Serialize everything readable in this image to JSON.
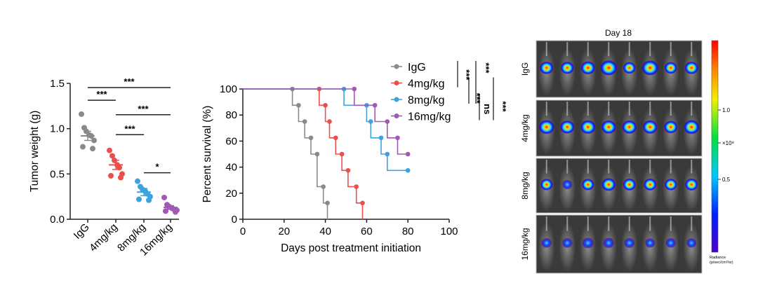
{
  "colors": {
    "IgG": "#8a8a8a",
    "4mg/kg": "#e9504d",
    "8mg/kg": "#3ba3e0",
    "16mg/kg": "#a05ab4"
  },
  "chart_data": [
    {
      "type": "scatter",
      "ylabel": "Tumor weight (g)",
      "xlabel": "",
      "categories": [
        "IgG",
        "4mg/kg",
        "8mg/kg",
        "16mg/kg"
      ],
      "ylim": [
        0,
        1.5
      ],
      "yticks": [
        "0.0",
        "0.5",
        "1.0",
        "1.5"
      ],
      "series": [
        {
          "category": "IgG",
          "mean": 0.92,
          "sem": 0.05,
          "values": [
            1.16,
            1.01,
            0.97,
            0.93,
            0.92,
            0.87,
            0.8,
            0.78
          ]
        },
        {
          "category": "4mg/kg",
          "mean": 0.6,
          "sem": 0.05,
          "values": [
            0.76,
            0.7,
            0.65,
            0.6,
            0.57,
            0.5,
            0.48,
            0.46
          ]
        },
        {
          "category": "8mg/kg",
          "mean": 0.3,
          "sem": 0.04,
          "values": [
            0.42,
            0.36,
            0.33,
            0.31,
            0.28,
            0.25,
            0.22,
            0.21
          ]
        },
        {
          "category": "16mg/kg",
          "mean": 0.13,
          "sem": 0.02,
          "values": [
            0.24,
            0.16,
            0.14,
            0.12,
            0.11,
            0.1,
            0.09,
            0.08
          ]
        }
      ],
      "significance": [
        {
          "from": "IgG",
          "to": "4mg/kg",
          "y": 1.36,
          "label": "***"
        },
        {
          "from": "IgG",
          "to": "16mg/kg",
          "y": 1.5,
          "label": "***"
        },
        {
          "from": "4mg/kg",
          "to": "16mg/kg",
          "y": 1.2,
          "label": "***"
        },
        {
          "from": "4mg/kg",
          "to": "8mg/kg",
          "y": 0.98,
          "label": "***"
        },
        {
          "from": "8mg/kg",
          "to": "16mg/kg",
          "y": 0.56,
          "label": "*"
        }
      ]
    },
    {
      "type": "line",
      "subtype": "kaplan-meier",
      "xlabel": "Days post treatment initiation",
      "ylabel": "Percent survival (%)",
      "xlim": [
        0,
        100
      ],
      "ylim": [
        0,
        100
      ],
      "xticks": [
        "0",
        "20",
        "40",
        "60",
        "80",
        "100"
      ],
      "yticks": [
        "0",
        "20",
        "40",
        "60",
        "80",
        "100"
      ],
      "legend_position": "top-right",
      "series": [
        {
          "name": "IgG",
          "points": [
            [
              0,
              100
            ],
            [
              24,
              100
            ],
            [
              24,
              87.5
            ],
            [
              27,
              87.5
            ],
            [
              27,
              75
            ],
            [
              30,
              75
            ],
            [
              30,
              62.5
            ],
            [
              33,
              62.5
            ],
            [
              33,
              50
            ],
            [
              36,
              50
            ],
            [
              36,
              25
            ],
            [
              39,
              25
            ],
            [
              39,
              12.5
            ],
            [
              41,
              12.5
            ],
            [
              41,
              0
            ]
          ],
          "markers": [
            24,
            27,
            30,
            33,
            36,
            39,
            41
          ]
        },
        {
          "name": "4mg/kg",
          "points": [
            [
              0,
              100
            ],
            [
              37,
              100
            ],
            [
              37,
              87.5
            ],
            [
              40,
              87.5
            ],
            [
              40,
              75
            ],
            [
              42,
              75
            ],
            [
              42,
              62.5
            ],
            [
              45,
              62.5
            ],
            [
              45,
              50
            ],
            [
              48,
              50
            ],
            [
              48,
              37.5
            ],
            [
              51,
              37.5
            ],
            [
              51,
              25
            ],
            [
              55,
              25
            ],
            [
              55,
              12.5
            ],
            [
              58,
              12.5
            ],
            [
              58,
              0
            ]
          ],
          "markers": [
            37,
            40,
            42,
            45,
            48,
            51,
            55,
            58
          ]
        },
        {
          "name": "8mg/kg",
          "points": [
            [
              0,
              100
            ],
            [
              49,
              100
            ],
            [
              49,
              87.5
            ],
            [
              60,
              87.5
            ],
            [
              60,
              75
            ],
            [
              62,
              75
            ],
            [
              62,
              62.5
            ],
            [
              67,
              62.5
            ],
            [
              67,
              50
            ],
            [
              70,
              50
            ],
            [
              70,
              37.5
            ],
            [
              80,
              37.5
            ]
          ],
          "markers": [
            49,
            60,
            62,
            67,
            70,
            80
          ]
        },
        {
          "name": "16mg/kg",
          "points": [
            [
              0,
              100
            ],
            [
              54,
              100
            ],
            [
              54,
              87.5
            ],
            [
              64,
              87.5
            ],
            [
              64,
              75
            ],
            [
              70,
              75
            ],
            [
              70,
              62.5
            ],
            [
              75,
              62.5
            ],
            [
              75,
              50
            ],
            [
              80,
              50
            ]
          ],
          "markers": [
            54,
            64,
            70,
            75,
            80
          ]
        }
      ],
      "significance": [
        "***",
        "***",
        "***",
        "ns",
        "***"
      ]
    }
  ],
  "imaging": {
    "title": "Day 18",
    "rows": [
      "IgG",
      "4mg/kg",
      "8mg/kg",
      "16mg/kg"
    ],
    "colorbar": {
      "ticks": [
        "1.0",
        "×10⁸",
        "0.5"
      ],
      "label_line1": "Radiance",
      "label_line2": "(p/sec/cm²/sr)"
    }
  }
}
